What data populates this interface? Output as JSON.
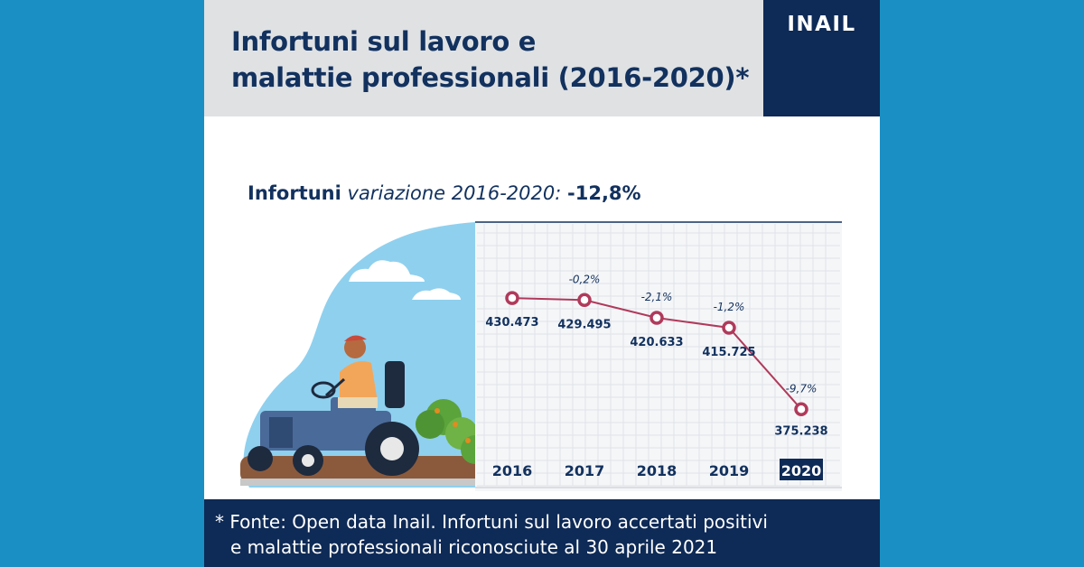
{
  "header": {
    "title_line1": "Infortuni sul lavoro e",
    "title_line2": "malattie professionali (2016-2020)*",
    "logo": "INAIL"
  },
  "subtitle": {
    "bold": "Infortuni",
    "italic": "variazione 2016-2020:",
    "value": "-12,8%"
  },
  "chart_data": {
    "type": "line",
    "categories": [
      "2016",
      "2017",
      "2018",
      "2019",
      "2020"
    ],
    "values": [
      430473,
      429495,
      420633,
      415725,
      375238
    ],
    "value_labels": [
      "430.473",
      "429.495",
      "420.633",
      "415.725",
      "375.238"
    ],
    "pct_changes": [
      "",
      "-0,2%",
      "-2,1%",
      "-1,2%",
      "-9,7%"
    ],
    "highlighted_category": "2020",
    "line_color": "#b03a5b",
    "grid": true
  },
  "illustration": "farmer-on-tractor",
  "footer": {
    "line1": "* Fonte: Open data Inail. Infortuni sul lavoro accertati positivi",
    "line2": "e malattie professionali riconosciute al 30 aprile 2021"
  }
}
